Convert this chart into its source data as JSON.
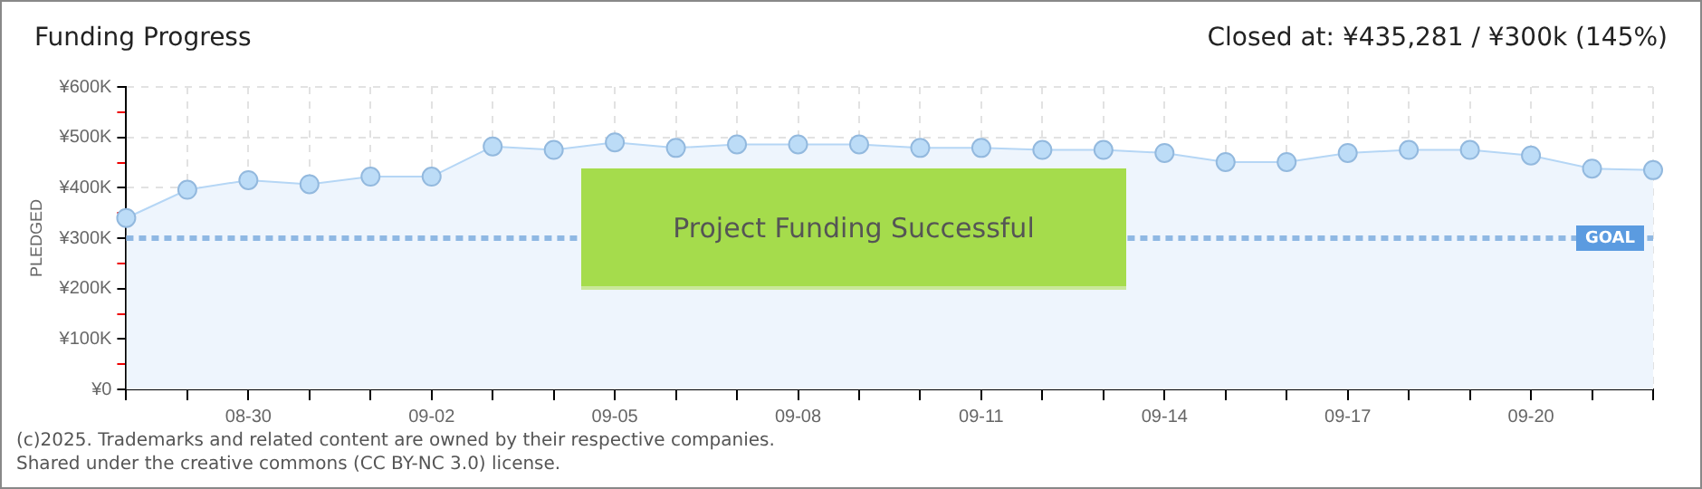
{
  "chart_data": {
    "type": "area",
    "title": "Funding Progress",
    "subtitle": "Closed at:  ¥435,281 /  ¥300k (145%)",
    "ylabel": "PLEDGED",
    "categories": [
      null,
      null,
      "08-30",
      null,
      null,
      "09-02",
      null,
      null,
      "09-05",
      null,
      null,
      "09-08",
      null,
      null,
      "09-11",
      null,
      null,
      "09-14",
      null,
      null,
      "09-17",
      null,
      null,
      "09-20",
      null,
      null
    ],
    "series": [
      {
        "color": "#b5d6f5",
        "values": [
          340000,
          396000,
          415000,
          407000,
          422000,
          422000,
          482000,
          475000,
          490000,
          479000,
          486000,
          486000,
          486000,
          479000,
          479000,
          475000,
          475000,
          469000,
          451000,
          451000,
          469000,
          475000,
          475000,
          464000,
          438000,
          435000
        ]
      }
    ],
    "ylim": [
      0,
      600000
    ],
    "yticks": [
      {
        "value": 0,
        "label": "¥0"
      },
      {
        "value": 50000,
        "label": null
      },
      {
        "value": 100000,
        "label": "¥100K"
      },
      {
        "value": 150000,
        "label": null
      },
      {
        "value": 200000,
        "label": "¥200K"
      },
      {
        "value": 250000,
        "label": null
      },
      {
        "value": 300000,
        "label": "¥300K"
      },
      {
        "value": 350000,
        "label": null
      },
      {
        "value": 400000,
        "label": "¥400K"
      },
      {
        "value": 450000,
        "label": null
      },
      {
        "value": 500000,
        "label": "¥500K"
      },
      {
        "value": 550000,
        "label": null
      },
      {
        "value": 600000,
        "label": "¥600K"
      }
    ],
    "ref_lines": [
      {
        "axis": "y",
        "value": 300000,
        "label": "GOAL",
        "color": "#8fb8e3",
        "line_style": "dashed"
      }
    ],
    "annotations": [
      "Project Funding Successful",
      "(c)2025. Trademarks and related content are owned by their respective companies.",
      "Shared under the creative commons (CC BY-NC 3.0) license."
    ],
    "grid": true,
    "legend": false,
    "marker": "circle"
  }
}
